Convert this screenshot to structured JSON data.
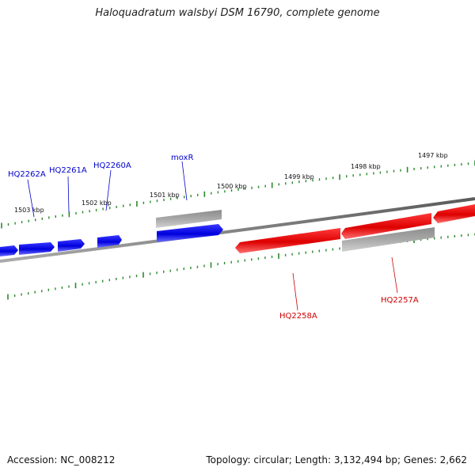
{
  "title": "Haloquadratum walsbyi DSM 16790, complete genome",
  "footer": {
    "accession": "Accession: NC_008212",
    "summary": "Topology: circular; Length: 3,132,494 bp; Genes: 2,662"
  },
  "colors": {
    "forward_gene": "#0000ee",
    "reverse_gene": "#ee0000",
    "other_feature": "#999999",
    "backbone": "#777777",
    "tick": "#2a8a2a"
  },
  "scale_labels": [
    "1503 kbp",
    "1502 kbp",
    "1501 kbp",
    "1500 kbp",
    "1499 kbp",
    "1498 kbp",
    "1497 kbp"
  ],
  "gene_labels": [
    {
      "text": "HQ2262A",
      "strand": "forward"
    },
    {
      "text": "HQ2261A",
      "strand": "forward"
    },
    {
      "text": "HQ2260A",
      "strand": "forward"
    },
    {
      "text": "moxR",
      "strand": "forward"
    },
    {
      "text": "HQ2258A",
      "strand": "reverse"
    },
    {
      "text": "HQ2257A",
      "strand": "reverse"
    }
  ]
}
